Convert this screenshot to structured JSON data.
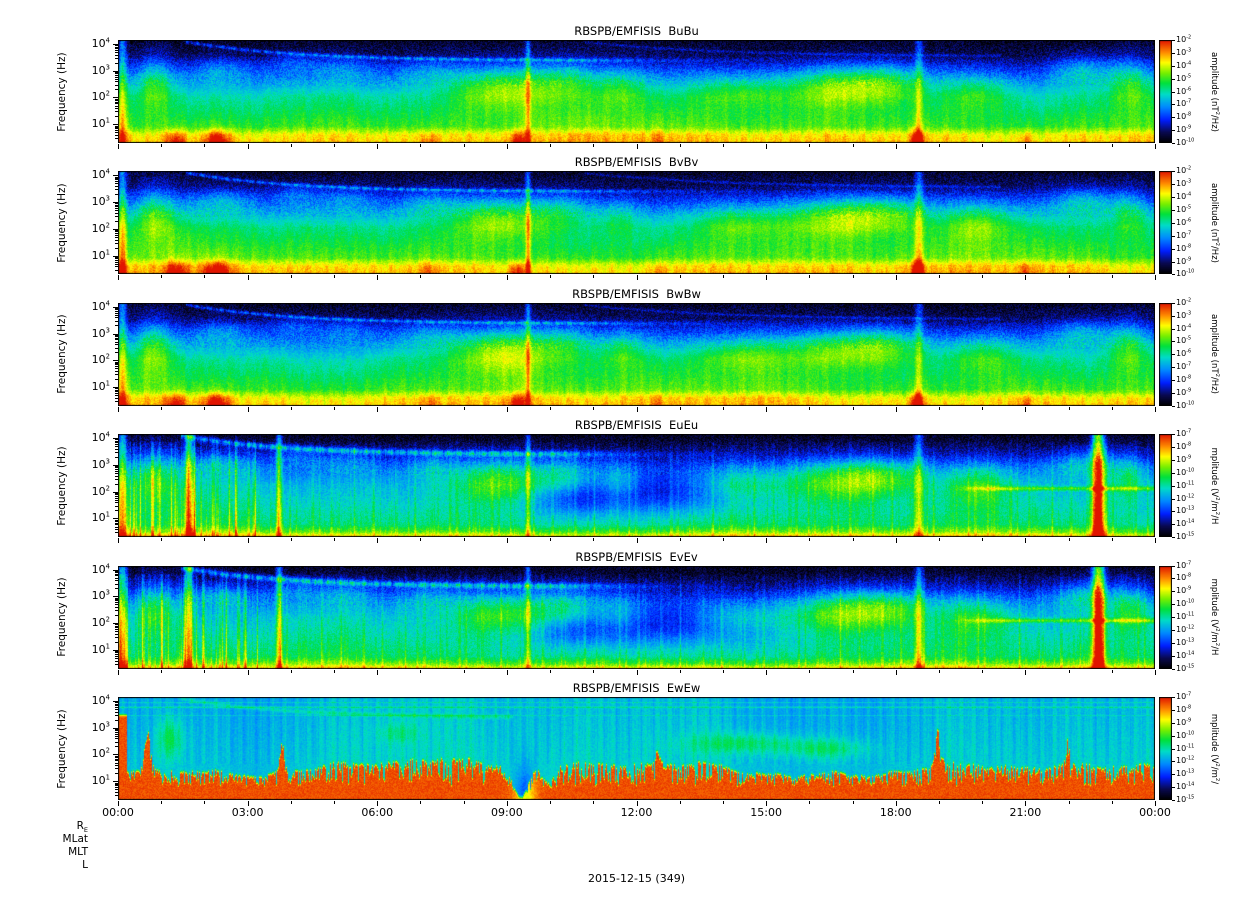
{
  "chart_data": {
    "type": "heatmap",
    "subtype": "spectrogram",
    "description": "Six stacked 24-hour wave power spectrograms from RBSPB/EMFISIS (three magnetic components BuBu, BvBv, BwBw and three electric components EuEu, EvEv, EwEw), log frequency axis, rainbow color scale",
    "x_axis": {
      "tick_labels": [
        "00:00",
        "03:00",
        "06:00",
        "09:00",
        "12:00",
        "15:00",
        "18:00",
        "21:00",
        "00:00"
      ],
      "major_tick_hours": 3,
      "minor_tick_hours": 1,
      "range_hours": [
        0,
        24
      ]
    },
    "y_axis": {
      "label": "Frequency (Hz)",
      "scale": "log",
      "tick_labels": [
        "10^4",
        "10^3",
        "10^2",
        "10^1"
      ],
      "range_hz": [
        2,
        14000
      ]
    },
    "panels": [
      {
        "title": "RBSPB/EMFISIS  BuBu",
        "character": "magnetic",
        "seed": 11,
        "colorbar_label": "amplitude (nT^2/Hz)",
        "colorbar_ticks": [
          "10^-2",
          "10^-3",
          "10^-4",
          "10^-5",
          "10^-6",
          "10^-7",
          "10^-8",
          "10^-9",
          "10^-10"
        ],
        "features": [
          "intense yellow-red band below ~10 Hz",
          "green mid-band",
          "descending arc from 10^4 Hz after 02:00",
          "enhancements near 09:00 and 16:00-18:00",
          "black with blue speckle at top"
        ]
      },
      {
        "title": "RBSPB/EMFISIS  BvBv",
        "character": "magnetic",
        "seed": 23,
        "colorbar_label": "amplitude (nT^2/Hz)",
        "colorbar_ticks": [
          "10^-2",
          "10^-3",
          "10^-4",
          "10^-5",
          "10^-6",
          "10^-7",
          "10^-8",
          "10^-9",
          "10^-10"
        ],
        "features": [
          "same morphology as BuBu"
        ]
      },
      {
        "title": "RBSPB/EMFISIS  BwBw",
        "character": "magnetic",
        "seed": 37,
        "colorbar_label": "amplitude (nT^2/Hz)",
        "colorbar_ticks": [
          "10^-2",
          "10^-3",
          "10^-4",
          "10^-5",
          "10^-6",
          "10^-7",
          "10^-8",
          "10^-9",
          "10^-10"
        ],
        "features": [
          "same morphology as BuBu"
        ]
      },
      {
        "title": "RBSPB/EMFISIS  EuEu",
        "character": "electric",
        "seed": 51,
        "colorbar_label": "mplitude (V^2/m^2/H",
        "colorbar_ticks": [
          "10^-7",
          "10^-8",
          "10^-9",
          "10^-10",
          "10^-11",
          "10^-12",
          "10^-13",
          "10^-14",
          "10^-15"
        ],
        "features": [
          "strong vertical orange streaks 00:00-03:00",
          "full-height red column near 22:30",
          "bright arc band 02:00-08:00",
          "deep blue region 10:00-15:00"
        ]
      },
      {
        "title": "RBSPB/EMFISIS  EvEv",
        "character": "electric",
        "seed": 67,
        "colorbar_label": "mplitude (V^2/m^2/H",
        "colorbar_ticks": [
          "10^-7",
          "10^-8",
          "10^-9",
          "10^-10",
          "10^-11",
          "10^-12",
          "10^-13",
          "10^-14",
          "10^-15"
        ],
        "features": [
          "same morphology as EuEu"
        ]
      },
      {
        "title": "RBSPB/EMFISIS  EwEw",
        "character": "electric-w",
        "seed": 83,
        "colorbar_label": "mplitude (V^2/m^2/",
        "colorbar_ticks": [
          "10^-7",
          "10^-8",
          "10^-9",
          "10^-10",
          "10^-11",
          "10^-12",
          "10^-13",
          "10^-14",
          "10^-15"
        ],
        "features": [
          "dense comb of red spikes in lower half",
          "cyan-blue upper half with thin horizontal lines",
          "red collapse with blue streaks near 09:30"
        ]
      }
    ],
    "ephemeris_rows": [
      {
        "text": "R",
        "sub": "E"
      },
      {
        "text": "MLat"
      },
      {
        "text": "MLT"
      },
      {
        "text": "L"
      }
    ],
    "footer_date": "2015-12-15 (349)",
    "colormap_stops": [
      "#000000",
      "#0a0a50",
      "#001eff",
      "#008cff",
      "#00dcc8",
      "#00e13c",
      "#78f000",
      "#ffff00",
      "#ff8c00",
      "#e11400"
    ],
    "frame_color": "#000000",
    "background_color": "#ffffff"
  }
}
